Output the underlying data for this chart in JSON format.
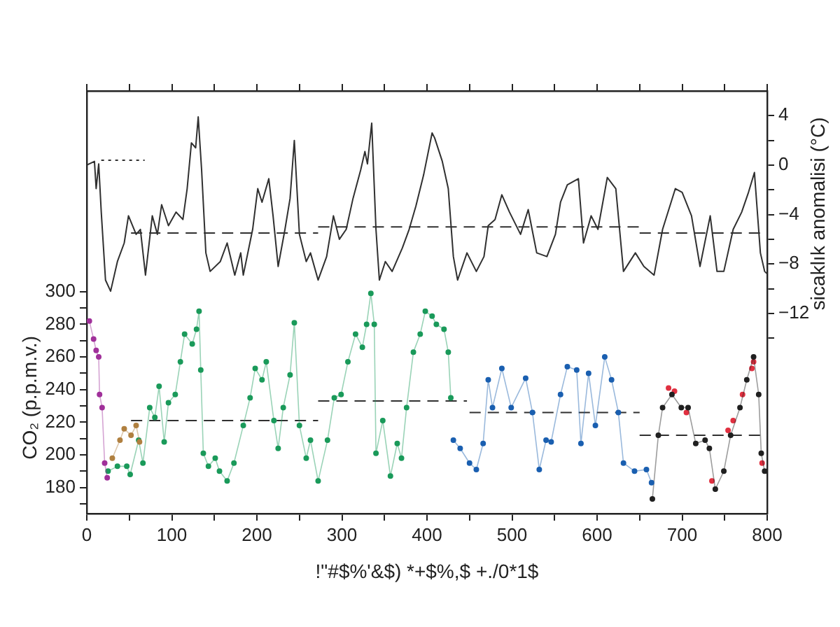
{
  "chart_data": {
    "type": "line",
    "xlabel": "!\"#$%'&$) *+$%,$ +./0*1$",
    "ylabel": "CO₂ (p.p.m.v.)",
    "y2label": "sicaklık anomalisi (°C)",
    "legend": false,
    "xlim": [
      0,
      800
    ],
    "xticks": [
      0,
      {
        "value": 50,
        "label": null
      },
      100,
      {
        "value": 150,
        "label": null
      },
      200,
      {
        "value": 250,
        "label": null
      },
      300,
      {
        "value": 350,
        "label": null
      },
      400,
      {
        "value": 450,
        "label": null
      },
      500,
      {
        "value": 550,
        "label": null
      },
      600,
      {
        "value": 650,
        "label": null
      },
      700,
      {
        "value": 750,
        "label": null
      },
      800
    ],
    "ylim": [
      164,
      423
    ],
    "yticks": [
      {
        "value": 170,
        "label": null
      },
      180,
      {
        "value": 190,
        "label": null
      },
      200,
      {
        "value": 210,
        "label": null
      },
      220,
      {
        "value": 230,
        "label": null
      },
      240,
      {
        "value": 250,
        "label": null
      },
      260,
      {
        "value": 270,
        "label": null
      },
      280,
      {
        "value": 290,
        "label": null
      },
      300
    ],
    "y2lim": [
      -28.2,
      6
    ],
    "y2ticks": [
      {
        "value": -14,
        "label": null
      },
      {
        "value": -12,
        "label": "−12"
      },
      {
        "value": -10,
        "label": null
      },
      {
        "value": -8,
        "label": "−8"
      },
      {
        "value": -6,
        "label": null
      },
      {
        "value": -4,
        "label": "−4"
      },
      {
        "value": -2,
        "label": null
      },
      0,
      {
        "value": 2,
        "label": null
      },
      4
    ],
    "series": [
      {
        "type": "line",
        "axis": "y2",
        "color": "#303030",
        "marker": "none",
        "x": [
          0,
          9,
          11,
          14,
          17,
          22,
          28,
          36,
          44,
          49,
          58,
          63,
          69,
          77,
          83,
          88,
          96,
          105,
          113,
          118,
          123,
          128,
          131,
          135,
          140,
          145,
          157,
          165,
          174,
          181,
          184,
          195,
          201,
          206,
          214,
          219,
          225,
          233,
          239,
          244,
          250,
          258,
          263,
          272,
          282,
          290,
          297,
          305,
          313,
          322,
          327,
          330,
          335,
          340,
          344,
          351,
          359,
          371,
          379,
          387,
          396,
          406,
          409,
          418,
          425,
          431,
          436,
          447,
          458,
          467,
          472,
          480,
          488,
          497,
          510,
          519,
          529,
          541,
          551,
          557,
          565,
          578,
          584,
          593,
          601,
          612,
          622,
          631,
          645,
          655,
          667,
          677,
          692,
          700,
          711,
          721,
          733,
          741,
          749,
          760,
          770,
          778,
          785,
          792,
          797,
          800
        ],
        "values": [
          0,
          0.3,
          -1.9,
          0.1,
          -3.8,
          -9.3,
          -10.2,
          -7.8,
          -6.3,
          -4.1,
          -5.6,
          -5.2,
          -8.9,
          -4.1,
          -5.6,
          -3.2,
          -4.9,
          -3.8,
          -4.4,
          -1.9,
          1.8,
          1.4,
          3.9,
          -0.4,
          -7.1,
          -8.6,
          -7.8,
          -6.3,
          -8.9,
          -7.1,
          -8.9,
          -5.2,
          -1.9,
          -3,
          -1.1,
          -4.1,
          -8.2,
          -5.2,
          -2.7,
          2,
          -5.6,
          -7.8,
          -7.1,
          -9.3,
          -7.4,
          -4.1,
          -6,
          -5.2,
          -2.7,
          -0.4,
          1.1,
          0.1,
          3.4,
          -5.2,
          -9.3,
          -7.8,
          -8.6,
          -6.7,
          -5.2,
          -3.3,
          -0.8,
          2.6,
          2.2,
          0.3,
          -1.9,
          -7.4,
          -9.3,
          -7.1,
          -8.6,
          -7.4,
          -4.9,
          -4.4,
          -2.4,
          -3.8,
          -5.6,
          -3.6,
          -7.1,
          -7.4,
          -5.6,
          -3,
          -1.6,
          -1.1,
          -6.3,
          -4.1,
          -5.2,
          -1,
          -1.9,
          -8.6,
          -7.1,
          -8.2,
          -8.9,
          -5.2,
          -1.9,
          -2.2,
          -4.1,
          -8.2,
          -4.1,
          -8.6,
          -8.6,
          -5.2,
          -3.8,
          -2.2,
          -0.6,
          -7.1,
          -8.6,
          -8.8
        ]
      },
      {
        "type": "line",
        "axis": "y2",
        "color": "#303030",
        "marker": "none",
        "line_style": "dotted",
        "x": [
          17,
          68
        ],
        "values": [
          0.4,
          0.4
        ]
      },
      {
        "type": "line",
        "axis": "y2",
        "color": "#303030",
        "marker": "none",
        "line_style": "dashed",
        "x": [
          52,
          272
        ],
        "values": [
          -5.5,
          -5.5
        ]
      },
      {
        "type": "line",
        "axis": "y2",
        "color": "#303030",
        "marker": "none",
        "line_style": "dashed",
        "x": [
          272,
          650
        ],
        "values": [
          -5,
          -5
        ]
      },
      {
        "type": "line",
        "axis": "y2",
        "color": "#303030",
        "marker": "none",
        "line_style": "dashed",
        "x": [
          650,
          800
        ],
        "values": [
          -5.5,
          -5.5
        ]
      },
      {
        "type": "line",
        "color": "#a0309a",
        "marker": "circle",
        "x": [
          3,
          8,
          11,
          14,
          15,
          18,
          21,
          24
        ],
        "values": [
          282,
          271,
          264,
          260,
          237,
          229,
          195,
          186
        ]
      },
      {
        "type": "line",
        "color": "#b08040",
        "marker": "circle",
        "x": [
          30,
          39,
          44,
          52,
          58,
          62
        ],
        "values": [
          198,
          209,
          216,
          212,
          218,
          208
        ]
      },
      {
        "type": "line",
        "color": "#1a9a5a",
        "marker": "circle",
        "x": [
          25,
          36,
          47,
          51,
          61,
          66,
          74,
          80,
          85,
          91,
          96,
          104,
          110,
          115,
          124,
          129,
          132,
          134,
          137,
          143,
          151,
          156,
          165,
          173,
          184,
          192,
          198,
          206,
          211,
          220,
          225,
          231,
          239,
          244,
          250,
          258,
          263,
          272,
          283,
          291,
          299,
          307,
          316,
          324,
          329,
          334,
          338,
          340,
          348,
          357,
          365,
          370,
          376,
          384,
          392,
          398,
          406,
          411,
          420,
          425,
          428
        ],
        "values": [
          190,
          193,
          193,
          188,
          209,
          195,
          229,
          223,
          242,
          208,
          232,
          237,
          257,
          274,
          268,
          277,
          288,
          252,
          201,
          193,
          198,
          190,
          184,
          195,
          218,
          235,
          253,
          246,
          257,
          221,
          204,
          229,
          249,
          281,
          218,
          198,
          209,
          184,
          209,
          235,
          237,
          257,
          274,
          266,
          280,
          299,
          280,
          201,
          221,
          187,
          207,
          198,
          229,
          263,
          274,
          288,
          285,
          280,
          277,
          263,
          235
        ]
      },
      {
        "type": "line",
        "color": "#1a5fb0",
        "marker": "circle",
        "x": [
          431,
          439,
          450,
          458,
          466,
          472,
          477,
          488,
          499,
          516,
          524,
          532,
          540,
          546,
          557,
          565,
          576,
          581,
          590,
          598,
          609,
          617,
          625,
          631,
          644,
          658,
          664
        ],
        "values": [
          209,
          204,
          195,
          191,
          207,
          246,
          229,
          253,
          229,
          247,
          226,
          191,
          209,
          208,
          237,
          254,
          252,
          207,
          250,
          218,
          260,
          246,
          226,
          195,
          190,
          191,
          183
        ]
      },
      {
        "type": "line",
        "color": "#202020",
        "marker": "circle",
        "x": [
          665,
          672,
          677,
          688,
          699,
          707,
          716,
          727,
          732,
          739,
          749,
          757,
          768,
          776,
          784,
          790,
          793,
          797
        ],
        "values": [
          173,
          212,
          229,
          237,
          229,
          229,
          207,
          209,
          204,
          179,
          190,
          212,
          229,
          246,
          260,
          237,
          201,
          190
        ]
      },
      {
        "type": "scatter",
        "color": "#e03040",
        "marker": "circle",
        "x": [
          684,
          691,
          705,
          735,
          754,
          760,
          771,
          782,
          784,
          794
        ],
        "values": [
          241,
          239,
          226,
          184,
          215,
          221,
          237,
          253,
          257,
          195
        ]
      },
      {
        "type": "line",
        "color": "#303030",
        "marker": "none",
        "line_style": "dashed",
        "x": [
          52,
          272
        ],
        "values": [
          221,
          221
        ]
      },
      {
        "type": "line",
        "color": "#303030",
        "marker": "none",
        "line_style": "dashed",
        "x": [
          272,
          447
        ],
        "values": [
          233,
          233
        ]
      },
      {
        "type": "line",
        "color": "#303030",
        "marker": "none",
        "line_style": "dashed",
        "x": [
          450,
          650
        ],
        "values": [
          226,
          226
        ]
      },
      {
        "type": "line",
        "color": "#303030",
        "marker": "none",
        "line_style": "dashed",
        "x": [
          650,
          800
        ],
        "values": [
          212,
          212
        ]
      }
    ]
  }
}
